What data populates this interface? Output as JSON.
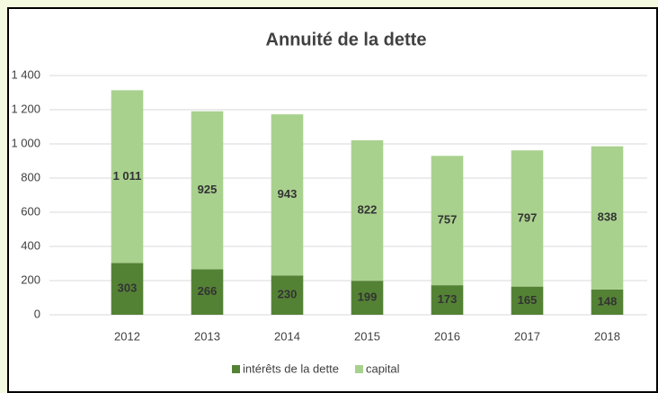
{
  "chart_data": {
    "type": "stacked_bar",
    "title": "Annuité de la dette",
    "categories": [
      "2012",
      "2013",
      "2014",
      "2015",
      "2016",
      "2017",
      "2018"
    ],
    "series": [
      {
        "name": "intérêts de la dette",
        "color": "#548235",
        "values": [
          303,
          266,
          230,
          199,
          173,
          165,
          148
        ]
      },
      {
        "name": "capital",
        "color": "#a9d18e",
        "values": [
          1011,
          925,
          943,
          822,
          757,
          797,
          838
        ],
        "value_labels": [
          "1 011",
          "925",
          "943",
          "822",
          "757",
          "797",
          "838"
        ]
      }
    ],
    "ylim": [
      0,
      1400
    ],
    "yticks": [
      0,
      200,
      400,
      600,
      800,
      {
        "value": 1000,
        "label": "1 000"
      },
      {
        "value": 1200,
        "label": "1 200"
      },
      {
        "value": 1400,
        "label": "1 400"
      }
    ],
    "grid": true,
    "legend": "bottom"
  }
}
